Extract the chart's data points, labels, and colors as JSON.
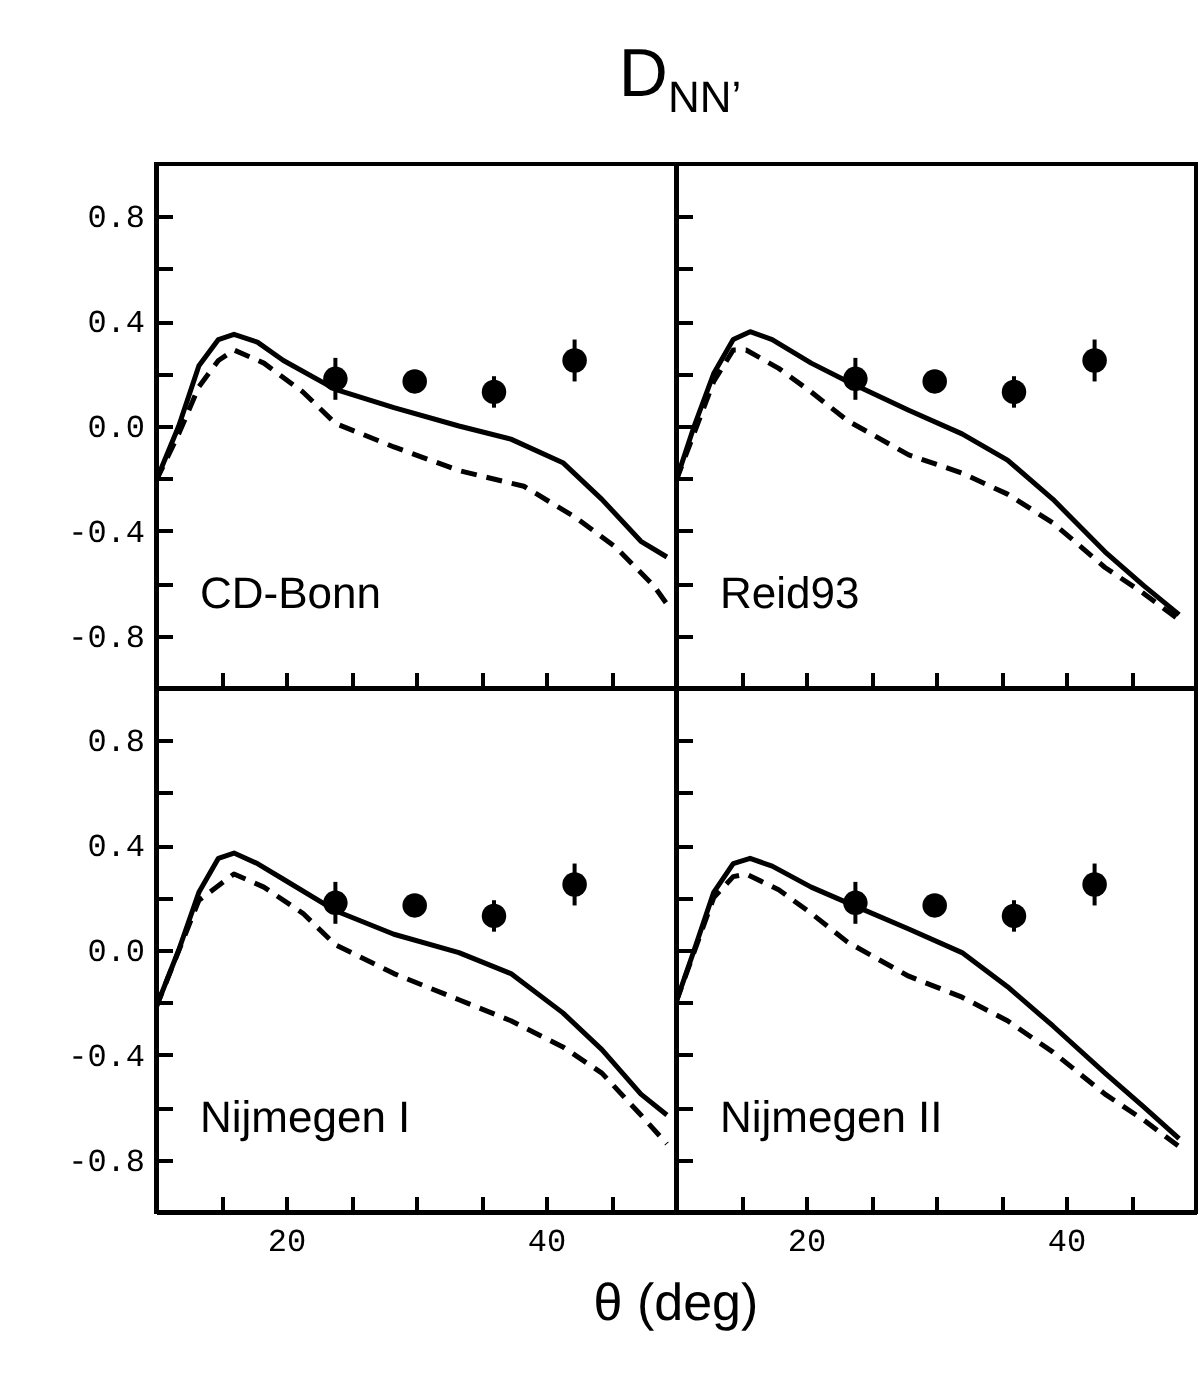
{
  "chart_data": [
    {
      "type": "line",
      "title": "D$_{NN’}$",
      "xlabel": "θ (deg)",
      "annotations": [
        "CD-Bonn"
      ],
      "tick_labels": "y",
      "xlim": [
        10,
        50
      ],
      "ylim": [
        -1,
        1
      ],
      "xticks": [
        {
          "value": 15,
          "label": null
        },
        {
          "value": 20,
          "label": null
        },
        {
          "value": 25,
          "label": null
        },
        {
          "value": 30,
          "label": null
        },
        {
          "value": 35,
          "label": null
        },
        {
          "value": 40,
          "label": null
        },
        {
          "value": 45,
          "label": null
        }
      ],
      "yticks": [
        -0.8,
        {
          "value": -0.6,
          "label": null
        },
        -0.4,
        {
          "value": -0.2,
          "label": null
        },
        {
          "value": 0,
          "label": "0.0"
        },
        {
          "value": 0.2,
          "label": null
        },
        0.4,
        {
          "value": 0.6,
          "label": null
        },
        0.8
      ],
      "series": [
        {
          "type": "line",
          "line_style": "solid",
          "color": "#000000",
          "x": [
            10,
            11.75,
            13.3,
            14.8,
            16,
            17.8,
            19.8,
            23.8,
            28.3,
            33.3,
            37.3,
            41.3,
            44.3,
            47.3,
            49.3
          ],
          "values": [
            -0.21,
            0,
            0.23,
            0.33,
            0.35,
            0.32,
            0.25,
            0.14,
            0.07,
            0,
            -0.05,
            -0.14,
            -0.28,
            -0.44,
            -0.5
          ]
        },
        {
          "type": "line",
          "line_style": "dashed",
          "color": "#000000",
          "x": [
            10,
            11.75,
            13.3,
            14.8,
            16,
            18.3,
            21.3,
            23.8,
            28.3,
            33.3,
            38.3,
            42.3,
            45.3,
            48.3,
            49.3
          ],
          "values": [
            -0.21,
            -0.03,
            0.15,
            0.25,
            0.29,
            0.24,
            0.13,
            0.01,
            -0.08,
            -0.17,
            -0.23,
            -0.35,
            -0.46,
            -0.61,
            -0.68
          ]
        },
        {
          "type": "scatter",
          "marker": "circle",
          "color": "#000000",
          "x": [
            23.8,
            29.9,
            36,
            42.2
          ],
          "values": [
            0.18,
            0.17,
            0.13,
            0.25
          ],
          "errors": [
            0.08,
            0.04,
            0.06,
            0.08
          ]
        }
      ]
    },
    {
      "type": "line",
      "annotations": [
        "Reid93"
      ],
      "tick_labels": false,
      "xlim": [
        10,
        50
      ],
      "ylim": [
        -1,
        1
      ],
      "xticks": [
        {
          "value": 15,
          "label": null
        },
        {
          "value": 20,
          "label": null
        },
        {
          "value": 25,
          "label": null
        },
        {
          "value": 30,
          "label": null
        },
        {
          "value": 35,
          "label": null
        },
        {
          "value": 40,
          "label": null
        },
        {
          "value": 45,
          "label": null
        }
      ],
      "yticks": [
        -0.8,
        {
          "value": -0.6,
          "label": null
        },
        -0.4,
        {
          "value": -0.2,
          "label": null
        },
        0,
        {
          "value": 0.2,
          "label": null
        },
        0.4,
        {
          "value": 0.6,
          "label": null
        },
        0.8
      ],
      "series": [
        {
          "type": "line",
          "line_style": "solid",
          "color": "#000000",
          "x": [
            10,
            11.4,
            12.9,
            14.4,
            15.7,
            17.4,
            20.4,
            23.2,
            27.9,
            32,
            35.5,
            39,
            43,
            46,
            48.7
          ],
          "values": [
            -0.21,
            0,
            0.2,
            0.33,
            0.36,
            0.33,
            0.24,
            0.17,
            0.06,
            -0.03,
            -0.13,
            -0.28,
            -0.48,
            -0.61,
            -0.72
          ]
        },
        {
          "type": "line",
          "line_style": "dashed",
          "color": "#000000",
          "x": [
            10,
            12.9,
            14.4,
            15.4,
            17.9,
            20.4,
            23.2,
            27.9,
            32,
            35.5,
            39,
            43,
            46,
            48.7
          ],
          "values": [
            -0.21,
            0.17,
            0.29,
            0.29,
            0.22,
            0.13,
            0.02,
            -0.11,
            -0.18,
            -0.26,
            -0.37,
            -0.54,
            -0.64,
            -0.74
          ]
        },
        {
          "type": "scatter",
          "marker": "circle",
          "color": "#000000",
          "x": [
            23.8,
            29.9,
            36,
            42.2
          ],
          "values": [
            0.18,
            0.17,
            0.13,
            0.25
          ],
          "errors": [
            0.08,
            0.04,
            0.06,
            0.08
          ]
        }
      ]
    },
    {
      "type": "line",
      "annotations": [
        "Nijmegen I"
      ],
      "xlim": [
        10,
        50
      ],
      "ylim": [
        -1,
        1
      ],
      "xticks": [
        {
          "value": 15,
          "label": null
        },
        {
          "value": 20,
          "label": "20"
        },
        {
          "value": 25,
          "label": null
        },
        {
          "value": 30,
          "label": null
        },
        {
          "value": 35,
          "label": null
        },
        {
          "value": 40,
          "label": "40"
        },
        {
          "value": 45,
          "label": null
        }
      ],
      "yticks": [
        -0.8,
        {
          "value": -0.6,
          "label": null
        },
        -0.4,
        {
          "value": -0.2,
          "label": null
        },
        {
          "value": 0,
          "label": "0.0"
        },
        {
          "value": 0.2,
          "label": null
        },
        0.4,
        {
          "value": 0.6,
          "label": null
        },
        0.8
      ],
      "series": [
        {
          "type": "line",
          "line_style": "solid",
          "color": "#000000",
          "x": [
            10,
            11.75,
            13.3,
            14.8,
            16,
            17.8,
            19.8,
            23.8,
            28.3,
            33.3,
            37.3,
            41.3,
            44.3,
            47.3,
            49.3
          ],
          "values": [
            -0.22,
            0,
            0.22,
            0.35,
            0.37,
            0.33,
            0.27,
            0.15,
            0.06,
            -0.01,
            -0.09,
            -0.24,
            -0.38,
            -0.55,
            -0.63
          ]
        },
        {
          "type": "line",
          "line_style": "dashed",
          "color": "#000000",
          "x": [
            10,
            13.3,
            16,
            18.3,
            21.3,
            23.8,
            28.3,
            33.3,
            37.3,
            41.3,
            44.3,
            47.3,
            49.3
          ],
          "values": [
            -0.22,
            0.19,
            0.29,
            0.24,
            0.14,
            0.02,
            -0.09,
            -0.19,
            -0.27,
            -0.37,
            -0.47,
            -0.63,
            -0.74
          ]
        },
        {
          "type": "scatter",
          "marker": "circle",
          "color": "#000000",
          "x": [
            23.8,
            29.9,
            36,
            42.2
          ],
          "values": [
            0.18,
            0.17,
            0.13,
            0.25
          ],
          "errors": [
            0.08,
            0.04,
            0.06,
            0.08
          ]
        }
      ]
    },
    {
      "type": "line",
      "annotations": [
        "Nijmegen II"
      ],
      "tick_labels": "x",
      "xlim": [
        10,
        50
      ],
      "ylim": [
        -1,
        1
      ],
      "xticks": [
        {
          "value": 15,
          "label": null
        },
        {
          "value": 20,
          "label": "20"
        },
        {
          "value": 25,
          "label": null
        },
        {
          "value": 30,
          "label": null
        },
        {
          "value": 35,
          "label": null
        },
        {
          "value": 40,
          "label": "40"
        },
        {
          "value": 45,
          "label": null
        }
      ],
      "yticks": [
        -0.8,
        {
          "value": -0.6,
          "label": null
        },
        -0.4,
        {
          "value": -0.2,
          "label": null
        },
        0,
        {
          "value": 0.2,
          "label": null
        },
        0.4,
        {
          "value": 0.6,
          "label": null
        },
        0.8
      ],
      "series": [
        {
          "type": "line",
          "line_style": "solid",
          "color": "#000000",
          "x": [
            10,
            11.4,
            12.9,
            14.4,
            15.7,
            17.4,
            20.4,
            23.2,
            27.9,
            32,
            35.5,
            39,
            43,
            46,
            48.7
          ],
          "values": [
            -0.2,
            0,
            0.22,
            0.33,
            0.35,
            0.32,
            0.24,
            0.18,
            0.08,
            -0.01,
            -0.14,
            -0.29,
            -0.47,
            -0.6,
            -0.72
          ]
        },
        {
          "type": "line",
          "line_style": "dashed",
          "color": "#000000",
          "x": [
            10,
            12.9,
            14.4,
            15.4,
            17.9,
            20.4,
            23.2,
            27.9,
            32,
            35.5,
            39,
            43,
            46,
            48.7
          ],
          "values": [
            -0.2,
            0.2,
            0.28,
            0.29,
            0.23,
            0.14,
            0.03,
            -0.1,
            -0.18,
            -0.27,
            -0.39,
            -0.55,
            -0.65,
            -0.75
          ]
        },
        {
          "type": "scatter",
          "marker": "circle",
          "color": "#000000",
          "x": [
            23.8,
            29.9,
            36,
            42.2
          ],
          "values": [
            0.18,
            0.17,
            0.13,
            0.25
          ],
          "errors": [
            0.08,
            0.04,
            0.06,
            0.08
          ]
        }
      ]
    }
  ]
}
